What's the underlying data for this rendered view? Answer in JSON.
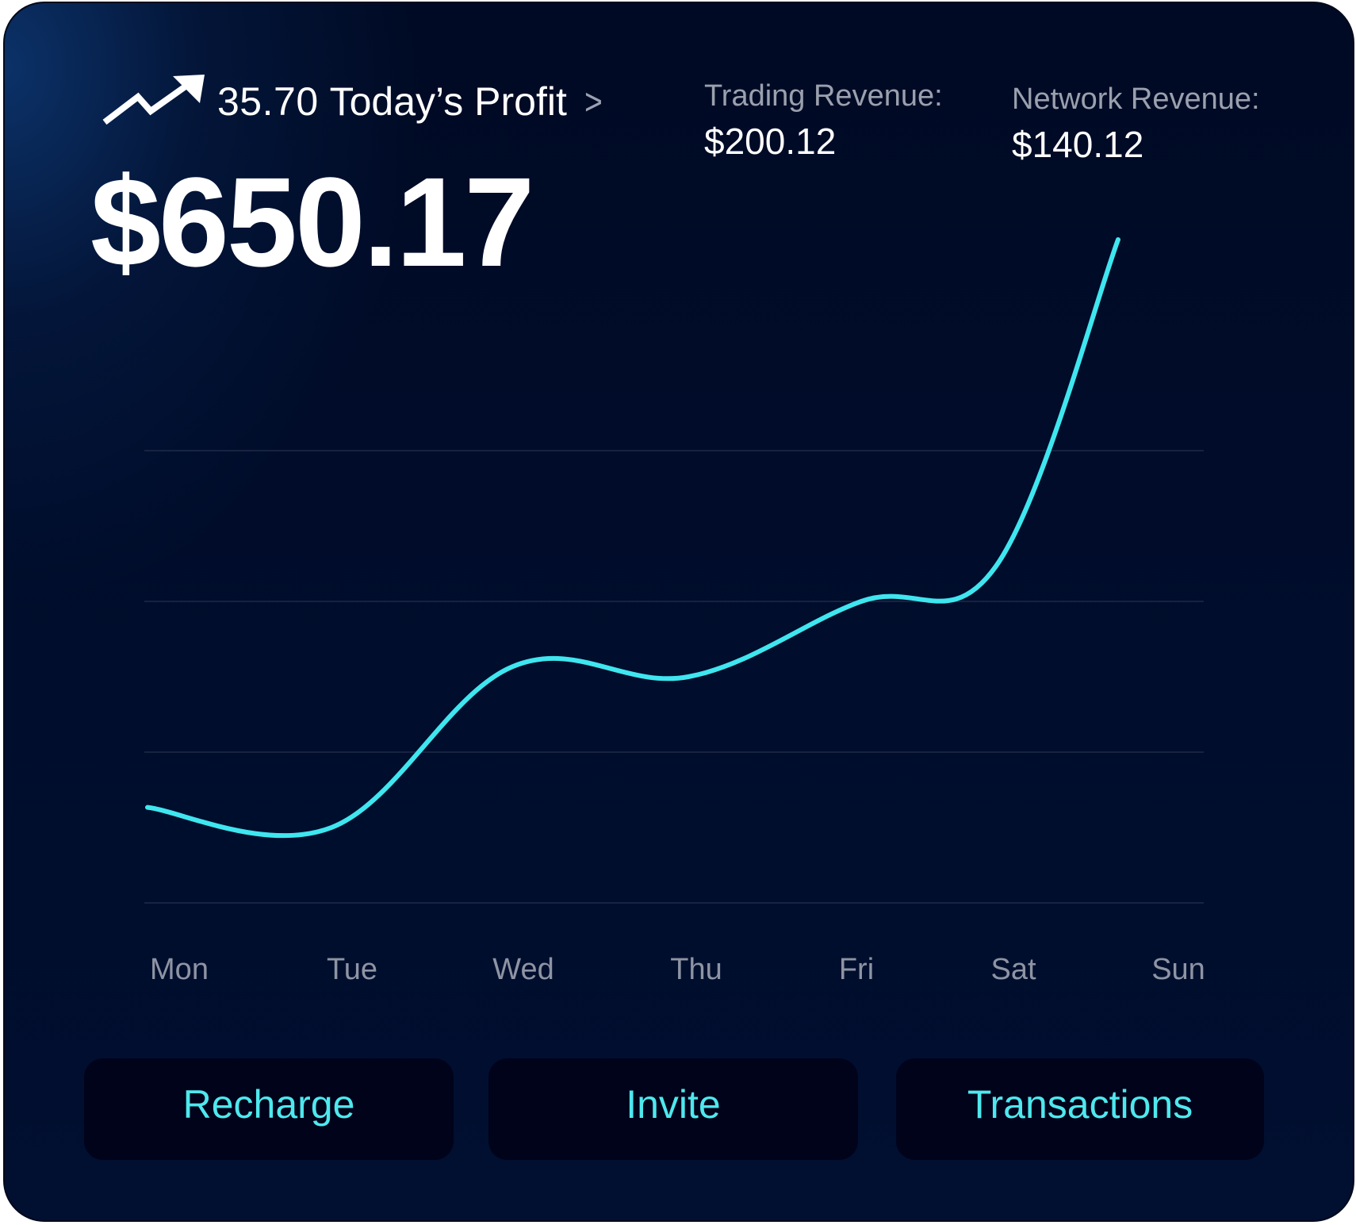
{
  "header": {
    "profit_value": "35.70",
    "profit_label": "Today’s Profit",
    "chevron": ">",
    "trend_icon": "trending-up-icon",
    "balance": "$650.17"
  },
  "stats": [
    {
      "label": "Trading Revenue:",
      "value": "$200.12"
    },
    {
      "label": "Network Revenue:",
      "value": "$140.12"
    }
  ],
  "chart_data": {
    "type": "line",
    "categories": [
      "Mon",
      "Tue",
      "Wed",
      "Thu",
      "Fri",
      "Sat",
      "Sun"
    ],
    "series": [
      {
        "color": "#3fe6ef",
        "values": [
          0.95,
          0.75,
          2.35,
          2.25,
          3.0,
          3.35,
          6.6
        ]
      }
    ],
    "ylim": [
      0,
      6
    ],
    "grid": true,
    "gridlines": 4,
    "line_color": "#3fe6ef",
    "grid_color": "#1f2a48"
  },
  "actions": {
    "recharge": "Recharge",
    "invite": "Invite",
    "transactions": "Transactions"
  },
  "colors": {
    "accent": "#4ee8ee",
    "background": "#000d2c",
    "button_bg": "#00031a"
  }
}
